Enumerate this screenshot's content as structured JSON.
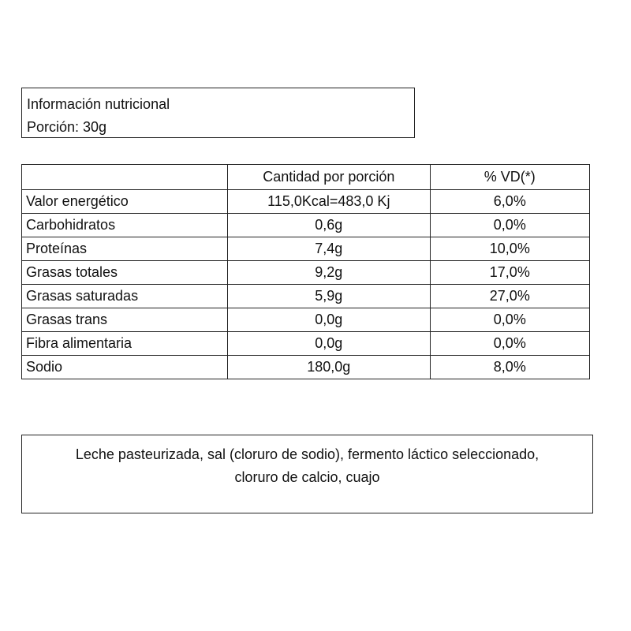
{
  "header": {
    "title": "Información nutricional",
    "serving": "Porción: 30g"
  },
  "table": {
    "columns": [
      "",
      "Cantidad por porción",
      "% VD(*)"
    ],
    "rows": [
      {
        "name": "Valor energético",
        "amount": "115,0Kcal=483,0 Kj",
        "vd": "6,0%"
      },
      {
        "name": "Carbohidratos",
        "amount": "0,6g",
        "vd": "0,0%"
      },
      {
        "name": "Proteínas",
        "amount": "7,4g",
        "vd": "10,0%"
      },
      {
        "name": "Grasas totales",
        "amount": "9,2g",
        "vd": "17,0%"
      },
      {
        "name": "Grasas saturadas",
        "amount": "5,9g",
        "vd": "27,0%"
      },
      {
        "name": "Grasas trans",
        "amount": "0,0g",
        "vd": "0,0%"
      },
      {
        "name": "Fibra alimentaria",
        "amount": "0,0g",
        "vd": "0,0%"
      },
      {
        "name": "Sodio",
        "amount": "180,0g",
        "vd": "8,0%"
      }
    ]
  },
  "ingredients": {
    "line1": "Leche pasteurizada, sal (cloruro de sodio), fermento láctico seleccionado,",
    "line2": "cloruro de calcio, cuajo"
  }
}
